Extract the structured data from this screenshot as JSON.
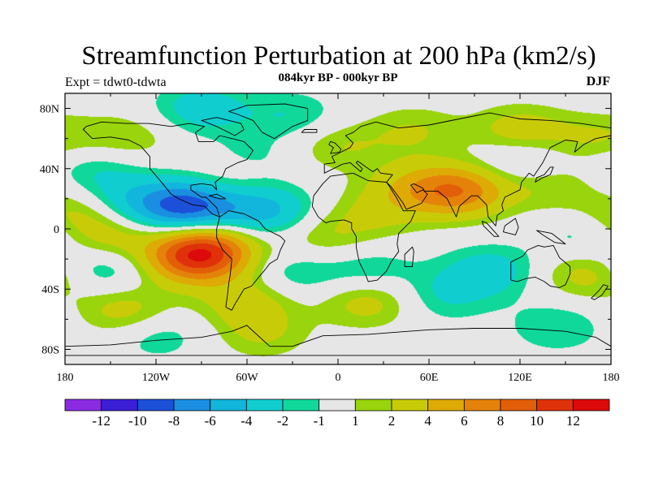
{
  "title": "Streamfunction Perturbation at 200 hPa (km2/s)",
  "left_string": "Expt = tdwt0-tdwta",
  "center_string": "084kyr BP - 000kyr BP",
  "right_string": "DJF",
  "map": {
    "projection": "cylindrical equidistant",
    "lon_range": [
      -180,
      180
    ],
    "lat_range": [
      -90,
      90
    ],
    "x_ticks": [
      {
        "lon": -180,
        "label": "180"
      },
      {
        "lon": -120,
        "label": "120W"
      },
      {
        "lon": -60,
        "label": "60W"
      },
      {
        "lon": 0,
        "label": "0"
      },
      {
        "lon": 60,
        "label": "60E"
      },
      {
        "lon": 120,
        "label": "120E"
      },
      {
        "lon": 180,
        "label": "180"
      }
    ],
    "y_ticks": [
      {
        "lat": 80,
        "label": "80N"
      },
      {
        "lat": 40,
        "label": "40N"
      },
      {
        "lat": 0,
        "label": "0"
      },
      {
        "lat": -40,
        "label": "40S"
      },
      {
        "lat": -80,
        "label": "80S"
      }
    ],
    "background_color": "#e6e6e6",
    "coastline_color": "#000000"
  },
  "colorbar": {
    "colors": [
      "#8a2be2",
      "#3a1fd6",
      "#1c50d8",
      "#1a8ee0",
      "#12b5db",
      "#10cdd0",
      "#10d89a",
      "#e6e6e6",
      "#99d40c",
      "#c8cc08",
      "#deaa05",
      "#e4820a",
      "#e35e08",
      "#e0320a",
      "#dc0a0a"
    ],
    "labels": [
      {
        "after": 0,
        "text": "-12"
      },
      {
        "after": 1,
        "text": "-10"
      },
      {
        "after": 2,
        "text": "-8"
      },
      {
        "after": 3,
        "text": "-6"
      },
      {
        "after": 4,
        "text": "-4"
      },
      {
        "after": 5,
        "text": "-2"
      },
      {
        "after": 6,
        "text": "-1"
      },
      {
        "after": 7,
        "text": "1"
      },
      {
        "after": 8,
        "text": "2"
      },
      {
        "after": 9,
        "text": "4"
      },
      {
        "after": 10,
        "text": "6"
      },
      {
        "after": 11,
        "text": "8"
      },
      {
        "after": 12,
        "text": "10"
      },
      {
        "after": 13,
        "text": "12"
      }
    ]
  },
  "field_anomalies": [
    {
      "lon": -100,
      "lat": 15,
      "value": -9
    },
    {
      "lon": -50,
      "lat": 12,
      "value": -5
    },
    {
      "lon": -140,
      "lat": 18,
      "value": -3
    },
    {
      "lon": -170,
      "lat": 10,
      "value": 3
    },
    {
      "lon": -95,
      "lat": -20,
      "value": 8
    },
    {
      "lon": -85,
      "lat": -12,
      "value": 6
    },
    {
      "lon": -150,
      "lat": -8,
      "value": 3
    },
    {
      "lon": -155,
      "lat": -25,
      "value": -3
    },
    {
      "lon": -60,
      "lat": -48,
      "value": 3
    },
    {
      "lon": -140,
      "lat": -55,
      "value": 3
    },
    {
      "lon": -120,
      "lat": -70,
      "value": -2
    },
    {
      "lon": -50,
      "lat": -70,
      "value": 2
    },
    {
      "lon": -30,
      "lat": -30,
      "value": -2
    },
    {
      "lon": 20,
      "lat": -28,
      "value": -2
    },
    {
      "lon": 20,
      "lat": -48,
      "value": 3
    },
    {
      "lon": 25,
      "lat": 10,
      "value": 2
    },
    {
      "lon": -10,
      "lat": -5,
      "value": 2
    },
    {
      "lon": 80,
      "lat": 25,
      "value": 7
    },
    {
      "lon": 50,
      "lat": 28,
      "value": 3
    },
    {
      "lon": 140,
      "lat": 28,
      "value": 2
    },
    {
      "lon": 100,
      "lat": -28,
      "value": -3
    },
    {
      "lon": 70,
      "lat": -45,
      "value": -2
    },
    {
      "lon": 165,
      "lat": -30,
      "value": 3
    },
    {
      "lon": 165,
      "lat": -5,
      "value": -2
    },
    {
      "lon": 145,
      "lat": -65,
      "value": -2
    },
    {
      "lon": -90,
      "lat": 80,
      "value": -3
    },
    {
      "lon": -30,
      "lat": 75,
      "value": -2
    },
    {
      "lon": -140,
      "lat": 60,
      "value": 2
    },
    {
      "lon": -160,
      "lat": 40,
      "value": -2
    },
    {
      "lon": -60,
      "lat": 45,
      "value": -2
    },
    {
      "lon": -70,
      "lat": 35,
      "value": 2
    },
    {
      "lon": 0,
      "lat": 55,
      "value": 2
    },
    {
      "lon": 50,
      "lat": 65,
      "value": 2
    },
    {
      "lon": 120,
      "lat": 65,
      "value": 3
    },
    {
      "lon": 120,
      "lat": 45,
      "value": -2
    },
    {
      "lon": 170,
      "lat": 60,
      "value": 2
    }
  ],
  "continents": [
    {
      "name": "North America",
      "coords": [
        [
          -168,
          66
        ],
        [
          -162,
          60
        ],
        [
          -150,
          61
        ],
        [
          -138,
          59
        ],
        [
          -130,
          55
        ],
        [
          -124,
          48
        ],
        [
          -124,
          40
        ],
        [
          -118,
          33
        ],
        [
          -110,
          23
        ],
        [
          -105,
          20
        ],
        [
          -96,
          16
        ],
        [
          -88,
          15
        ],
        [
          -83,
          10
        ],
        [
          -78,
          8
        ],
        [
          -80,
          14
        ],
        [
          -87,
          21
        ],
        [
          -90,
          21
        ],
        [
          -97,
          26
        ],
        [
          -97,
          29
        ],
        [
          -90,
          30
        ],
        [
          -83,
          29
        ],
        [
          -80,
          26
        ],
        [
          -81,
          31
        ],
        [
          -76,
          35
        ],
        [
          -74,
          40
        ],
        [
          -70,
          42
        ],
        [
          -66,
          44
        ],
        [
          -60,
          46
        ],
        [
          -56,
          52
        ],
        [
          -62,
          58
        ],
        [
          -70,
          60
        ],
        [
          -78,
          62
        ],
        [
          -82,
          58
        ],
        [
          -92,
          58
        ],
        [
          -94,
          64
        ],
        [
          -88,
          68
        ],
        [
          -98,
          70
        ],
        [
          -110,
          68
        ],
        [
          -125,
          70
        ],
        [
          -140,
          70
        ],
        [
          -156,
          71
        ],
        [
          -166,
          68
        ]
      ]
    },
    {
      "name": "Greenland",
      "coords": [
        [
          -72,
          78
        ],
        [
          -60,
          82
        ],
        [
          -35,
          83
        ],
        [
          -20,
          80
        ],
        [
          -20,
          72
        ],
        [
          -30,
          68
        ],
        [
          -42,
          60
        ],
        [
          -50,
          64
        ],
        [
          -56,
          72
        ],
        [
          -66,
          76
        ]
      ]
    },
    {
      "name": "South America",
      "coords": [
        [
          -78,
          8
        ],
        [
          -72,
          12
        ],
        [
          -62,
          10
        ],
        [
          -52,
          5
        ],
        [
          -48,
          0
        ],
        [
          -38,
          -5
        ],
        [
          -35,
          -8
        ],
        [
          -38,
          -14
        ],
        [
          -40,
          -20
        ],
        [
          -45,
          -23
        ],
        [
          -48,
          -27
        ],
        [
          -53,
          -33
        ],
        [
          -57,
          -38
        ],
        [
          -62,
          -40
        ],
        [
          -65,
          -45
        ],
        [
          -68,
          -50
        ],
        [
          -70,
          -54
        ],
        [
          -74,
          -52
        ],
        [
          -73,
          -45
        ],
        [
          -72,
          -36
        ],
        [
          -71,
          -30
        ],
        [
          -70,
          -20
        ],
        [
          -76,
          -14
        ],
        [
          -80,
          -6
        ],
        [
          -80,
          0
        ]
      ]
    },
    {
      "name": "Africa",
      "coords": [
        [
          -17,
          15
        ],
        [
          -16,
          22
        ],
        [
          -10,
          30
        ],
        [
          -5,
          35
        ],
        [
          10,
          37
        ],
        [
          20,
          32
        ],
        [
          32,
          31
        ],
        [
          34,
          28
        ],
        [
          39,
          20
        ],
        [
          43,
          12
        ],
        [
          51,
          12
        ],
        [
          48,
          5
        ],
        [
          40,
          -3
        ],
        [
          39,
          -10
        ],
        [
          40,
          -15
        ],
        [
          35,
          -22
        ],
        [
          32,
          -28
        ],
        [
          26,
          -34
        ],
        [
          20,
          -35
        ],
        [
          18,
          -30
        ],
        [
          14,
          -22
        ],
        [
          12,
          -12
        ],
        [
          12,
          -5
        ],
        [
          9,
          0
        ],
        [
          9,
          4
        ],
        [
          4,
          6
        ],
        [
          -5,
          5
        ],
        [
          -8,
          4
        ],
        [
          -13,
          8
        ]
      ]
    },
    {
      "name": "Eurasia",
      "coords": [
        [
          -9,
          37
        ],
        [
          -9,
          43
        ],
        [
          -2,
          44
        ],
        [
          -4,
          48
        ],
        [
          2,
          51
        ],
        [
          8,
          54
        ],
        [
          10,
          57
        ],
        [
          5,
          62
        ],
        [
          10,
          64
        ],
        [
          15,
          68
        ],
        [
          25,
          71
        ],
        [
          40,
          67
        ],
        [
          60,
          69
        ],
        [
          80,
          73
        ],
        [
          100,
          77
        ],
        [
          120,
          73
        ],
        [
          140,
          72
        ],
        [
          160,
          70
        ],
        [
          180,
          67
        ],
        [
          180,
          62
        ],
        [
          170,
          60
        ],
        [
          162,
          56
        ],
        [
          156,
          51
        ],
        [
          158,
          58
        ],
        [
          150,
          59
        ],
        [
          140,
          54
        ],
        [
          135,
          44
        ],
        [
          129,
          35
        ],
        [
          126,
          37
        ],
        [
          121,
          31
        ],
        [
          120,
          26
        ],
        [
          110,
          21
        ],
        [
          108,
          16
        ],
        [
          109,
          12
        ],
        [
          105,
          9
        ],
        [
          104,
          2
        ],
        [
          99,
          8
        ],
        [
          98,
          16
        ],
        [
          92,
          22
        ],
        [
          88,
          22
        ],
        [
          80,
          15
        ],
        [
          78,
          8
        ],
        [
          72,
          20
        ],
        [
          66,
          25
        ],
        [
          57,
          25
        ],
        [
          56,
          27
        ],
        [
          50,
          30
        ],
        [
          48,
          29
        ],
        [
          52,
          24
        ],
        [
          56,
          26
        ],
        [
          59,
          23
        ],
        [
          55,
          17
        ],
        [
          45,
          13
        ],
        [
          43,
          17
        ],
        [
          35,
          28
        ],
        [
          32,
          31
        ],
        [
          36,
          36
        ],
        [
          28,
          37
        ],
        [
          26,
          40
        ],
        [
          23,
          38
        ],
        [
          20,
          40
        ],
        [
          13,
          45
        ],
        [
          12,
          44
        ],
        [
          16,
          40
        ],
        [
          15,
          38
        ],
        [
          8,
          44
        ],
        [
          3,
          43
        ]
      ]
    },
    {
      "name": "Australia",
      "coords": [
        [
          114,
          -22
        ],
        [
          114,
          -34
        ],
        [
          118,
          -35
        ],
        [
          124,
          -33
        ],
        [
          130,
          -32
        ],
        [
          136,
          -35
        ],
        [
          140,
          -38
        ],
        [
          146,
          -39
        ],
        [
          150,
          -37
        ],
        [
          153,
          -30
        ],
        [
          153,
          -25
        ],
        [
          146,
          -19
        ],
        [
          142,
          -11
        ],
        [
          136,
          -12
        ],
        [
          132,
          -11
        ],
        [
          125,
          -14
        ],
        [
          122,
          -18
        ]
      ]
    },
    {
      "name": "Antarctica",
      "coords": [
        [
          -180,
          -84
        ],
        [
          -180,
          -78
        ],
        [
          -150,
          -77
        ],
        [
          -120,
          -74
        ],
        [
          -90,
          -72
        ],
        [
          -70,
          -68
        ],
        [
          -60,
          -64
        ],
        [
          -58,
          -66
        ],
        [
          -45,
          -78
        ],
        [
          -30,
          -78
        ],
        [
          -10,
          -71
        ],
        [
          20,
          -70
        ],
        [
          60,
          -67
        ],
        [
          90,
          -66
        ],
        [
          120,
          -66
        ],
        [
          150,
          -68
        ],
        [
          170,
          -72
        ],
        [
          180,
          -78
        ],
        [
          180,
          -84
        ]
      ]
    },
    {
      "name": "Great Britain",
      "coords": [
        [
          -5,
          50
        ],
        [
          1,
          51
        ],
        [
          2,
          53
        ],
        [
          -2,
          57
        ],
        [
          -5,
          58
        ],
        [
          -6,
          56
        ],
        [
          -3,
          54
        ]
      ]
    },
    {
      "name": "Madagascar",
      "coords": [
        [
          44,
          -25
        ],
        [
          49,
          -25
        ],
        [
          50,
          -15
        ],
        [
          49,
          -12
        ],
        [
          44,
          -17
        ]
      ]
    },
    {
      "name": "Japan",
      "coords": [
        [
          130,
          31
        ],
        [
          135,
          34
        ],
        [
          140,
          36
        ],
        [
          142,
          41
        ],
        [
          140,
          41
        ],
        [
          136,
          36
        ],
        [
          131,
          34
        ]
      ]
    },
    {
      "name": "Borneo",
      "coords": [
        [
          109,
          -2
        ],
        [
          117,
          -4
        ],
        [
          119,
          1
        ],
        [
          117,
          7
        ],
        [
          110,
          2
        ]
      ]
    },
    {
      "name": "Sumatra",
      "coords": [
        [
          95,
          5
        ],
        [
          98,
          4
        ],
        [
          106,
          -5
        ],
        [
          103,
          -5
        ],
        [
          96,
          2
        ]
      ]
    },
    {
      "name": "New Guinea",
      "coords": [
        [
          131,
          -1
        ],
        [
          141,
          -3
        ],
        [
          150,
          -10
        ],
        [
          143,
          -9
        ],
        [
          135,
          -4
        ]
      ]
    },
    {
      "name": "New Zealand",
      "coords": [
        [
          167,
          -46
        ],
        [
          172,
          -41
        ],
        [
          175,
          -37
        ],
        [
          178,
          -38
        ],
        [
          174,
          -44
        ],
        [
          169,
          -47
        ]
      ]
    },
    {
      "name": "Iceland",
      "coords": [
        [
          -24,
          64
        ],
        [
          -22,
          66
        ],
        [
          -14,
          66
        ],
        [
          -14,
          64
        ]
      ]
    },
    {
      "name": "Cuba",
      "coords": [
        [
          -85,
          22
        ],
        [
          -80,
          23
        ],
        [
          -74,
          20
        ],
        [
          -78,
          20
        ]
      ]
    },
    {
      "name": "Baffin Island",
      "coords": [
        [
          -90,
          72
        ],
        [
          -80,
          74
        ],
        [
          -64,
          70
        ],
        [
          -62,
          66
        ],
        [
          -68,
          62
        ],
        [
          -80,
          68
        ]
      ]
    }
  ]
}
